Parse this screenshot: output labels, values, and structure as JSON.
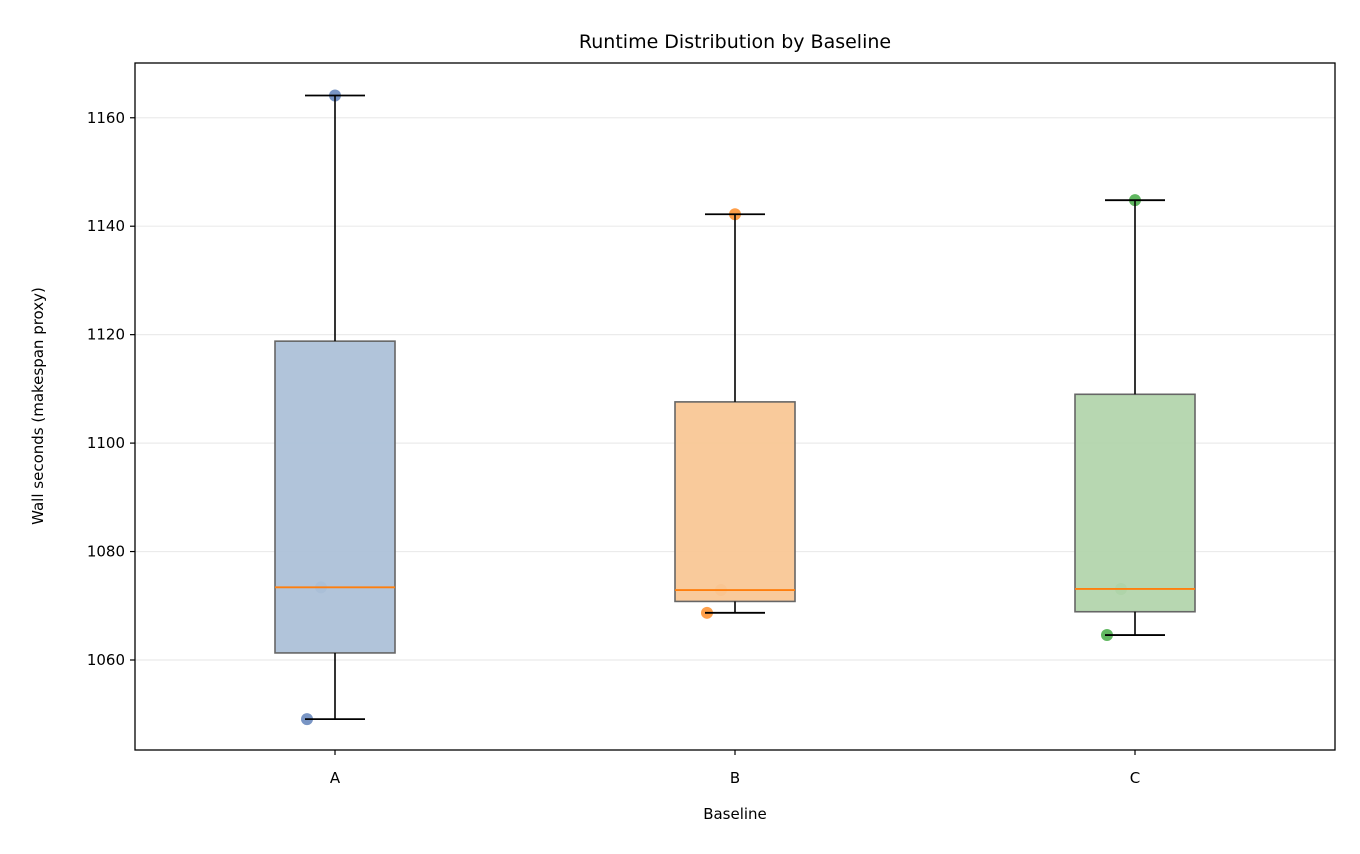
{
  "chart_data": {
    "type": "box",
    "title": "Runtime Distribution by Baseline",
    "xlabel": "Baseline",
    "ylabel": "Wall seconds (makespan proxy)",
    "ylim": [
      1043.4,
      1170.1
    ],
    "yticks": [
      1060,
      1080,
      1100,
      1120,
      1140,
      1160
    ],
    "grid": "y",
    "categories": [
      "A",
      "B",
      "C"
    ],
    "groups": [
      {
        "name": "A",
        "points": [
          1164.1,
          1073.4,
          1049.1
        ],
        "q1": 1061.3,
        "median": 1073.4,
        "q3": 1118.8,
        "whisker_low": 1049.1,
        "whisker_high": 1164.1,
        "color": "#4c72b0",
        "fill": "#adc1d8"
      },
      {
        "name": "B",
        "points": [
          1142.2,
          1072.9,
          1068.7
        ],
        "q1": 1070.8,
        "median": 1072.9,
        "q3": 1107.6,
        "whisker_low": 1068.7,
        "whisker_high": 1142.2,
        "color": "#ff7f0e",
        "fill": "#f9c796"
      },
      {
        "name": "C",
        "points": [
          1144.8,
          1073.1,
          1064.6
        ],
        "q1": 1068.9,
        "median": 1073.1,
        "q3": 1109.0,
        "whisker_low": 1064.6,
        "whisker_high": 1144.8,
        "color": "#2ca02c",
        "fill": "#b3d5ad"
      }
    ],
    "median_color": "#ff7f0e"
  }
}
